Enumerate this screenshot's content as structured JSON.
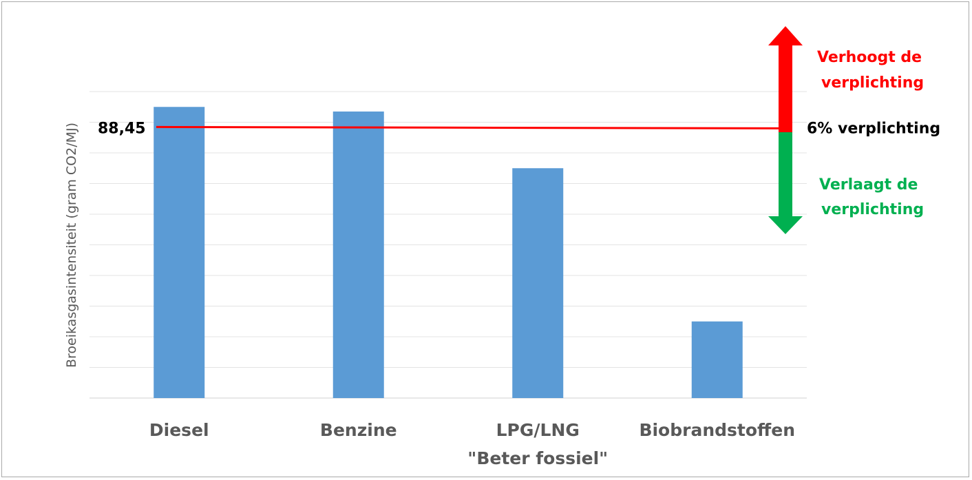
{
  "chart_data": {
    "type": "bar",
    "categories": [
      "Diesel",
      "Benzine",
      "LPG/LNG \"Beter fossiel\"",
      "Biobrandstoffen"
    ],
    "category_lines": [
      [
        "Diesel"
      ],
      [
        "Benzine"
      ],
      [
        "LPG/LNG",
        "\"Beter fossiel\""
      ],
      [
        "Biobrandstoffen"
      ]
    ],
    "values": [
      95,
      93.5,
      75,
      25
    ],
    "ylim": [
      0,
      100
    ],
    "ylabel": "Broeikasgasintensiteit (gram CO2/MJ)",
    "xlabel": "",
    "grid": true,
    "bar_color": "#5b9bd5",
    "reference_line": {
      "value": 88.45,
      "label": "88,45",
      "right_label": "6% verplichting",
      "color": "#ff0000"
    },
    "annotations": {
      "up": {
        "lines": [
          "Verhoogt de",
          "verplichting"
        ],
        "color": "#ff0000"
      },
      "down": {
        "lines": [
          "Verlaagt de",
          "verplichting"
        ],
        "color": "#00b050"
      }
    }
  }
}
